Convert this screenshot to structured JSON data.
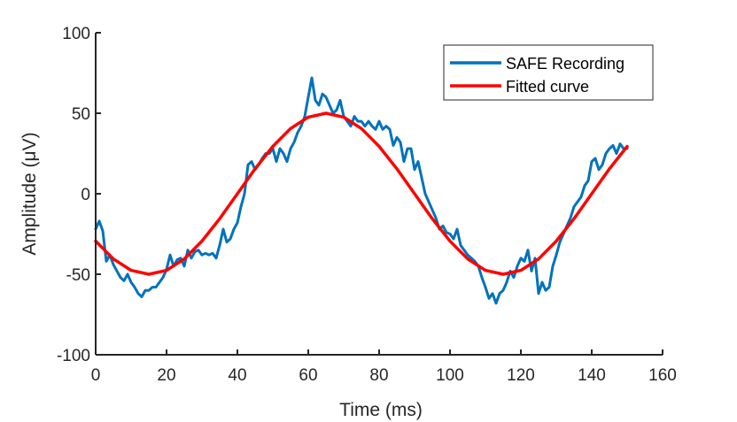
{
  "chart_data": {
    "type": "line",
    "title": "",
    "xlabel": "Time (ms)",
    "ylabel": "Amplitude (μV)",
    "xlim": [
      0,
      160
    ],
    "ylim": [
      -100,
      100
    ],
    "xticks": [
      0,
      20,
      40,
      60,
      80,
      100,
      120,
      140,
      160
    ],
    "yticks": [
      -100,
      -50,
      0,
      50,
      100
    ],
    "grid": false,
    "legend_position": "top-right",
    "series": [
      {
        "name": "SAFE Recording",
        "color": "#0072BD",
        "x": [
          0,
          1,
          2,
          3,
          4,
          5,
          6,
          7,
          8,
          9,
          10,
          11,
          12,
          13,
          14,
          15,
          16,
          17,
          18,
          19,
          20,
          21,
          22,
          23,
          24,
          25,
          26,
          27,
          28,
          29,
          30,
          31,
          32,
          33,
          34,
          35,
          36,
          37,
          38,
          39,
          40,
          41,
          42,
          43,
          44,
          45,
          46,
          47,
          48,
          49,
          50,
          51,
          52,
          53,
          54,
          55,
          56,
          57,
          58,
          59,
          60,
          61,
          62,
          63,
          64,
          65,
          66,
          67,
          68,
          69,
          70,
          71,
          72,
          73,
          74,
          75,
          76,
          77,
          78,
          79,
          80,
          81,
          82,
          83,
          84,
          85,
          86,
          87,
          88,
          89,
          90,
          91,
          92,
          93,
          94,
          95,
          96,
          97,
          98,
          99,
          100,
          101,
          102,
          103,
          104,
          105,
          106,
          107,
          108,
          109,
          110,
          111,
          112,
          113,
          114,
          115,
          116,
          117,
          118,
          119,
          120,
          121,
          122,
          123,
          124,
          125,
          126,
          127,
          128,
          129,
          130,
          131,
          132,
          133,
          134,
          135,
          136,
          137,
          138,
          139,
          140,
          141,
          142,
          143,
          144,
          145,
          146,
          147,
          148,
          149,
          150
        ],
        "y": [
          -22,
          -17,
          -23,
          -42,
          -38,
          -44,
          -48,
          -52,
          -54,
          -50,
          -55,
          -58,
          -62,
          -64,
          -60,
          -60,
          -58,
          -58,
          -55,
          -52,
          -47,
          -38,
          -45,
          -41,
          -40,
          -45,
          -35,
          -40,
          -36,
          -35,
          -38,
          -37,
          -38,
          -37,
          -40,
          -32,
          -22,
          -30,
          -28,
          -22,
          -18,
          -8,
          0,
          18,
          20,
          15,
          18,
          22,
          25,
          25,
          28,
          20,
          28,
          25,
          20,
          28,
          32,
          38,
          42,
          48,
          60,
          72,
          58,
          55,
          62,
          60,
          55,
          50,
          52,
          58,
          48,
          45,
          42,
          48,
          45,
          45,
          42,
          45,
          42,
          40,
          45,
          40,
          42,
          40,
          30,
          35,
          32,
          20,
          28,
          28,
          15,
          20,
          10,
          0,
          -5,
          -10,
          -15,
          -22,
          -20,
          -24,
          -25,
          -28,
          -22,
          -32,
          -35,
          -38,
          -40,
          -42,
          -45,
          -52,
          -58,
          -65,
          -62,
          -68,
          -62,
          -60,
          -55,
          -48,
          -52,
          -45,
          -40,
          -42,
          -35,
          -48,
          -40,
          -62,
          -55,
          -60,
          -58,
          -45,
          -38,
          -30,
          -25,
          -20,
          -15,
          -8,
          -5,
          -2,
          5,
          8,
          20,
          22,
          15,
          18,
          25,
          28,
          30,
          25,
          31,
          28,
          28
        ]
      },
      {
        "name": "Fitted curve",
        "color": "#FF0000",
        "model": "50*sin(2*pi*(x-40)/100)",
        "x": [
          0,
          5,
          10,
          15,
          20,
          25,
          30,
          35,
          40,
          45,
          50,
          55,
          60,
          65,
          70,
          75,
          80,
          85,
          90,
          95,
          100,
          105,
          110,
          115,
          120,
          125,
          130,
          135,
          140,
          145,
          150
        ],
        "y": [
          -29.4,
          -40.5,
          -47.6,
          -50.0,
          -47.6,
          -40.5,
          -29.4,
          -15.5,
          0.0,
          15.5,
          29.4,
          40.5,
          47.6,
          50.0,
          47.6,
          40.5,
          29.4,
          15.5,
          0.0,
          -15.5,
          -29.4,
          -40.5,
          -47.6,
          -50.0,
          -47.6,
          -40.5,
          -29.4,
          -15.5,
          0.0,
          15.5,
          29.4
        ]
      }
    ]
  }
}
